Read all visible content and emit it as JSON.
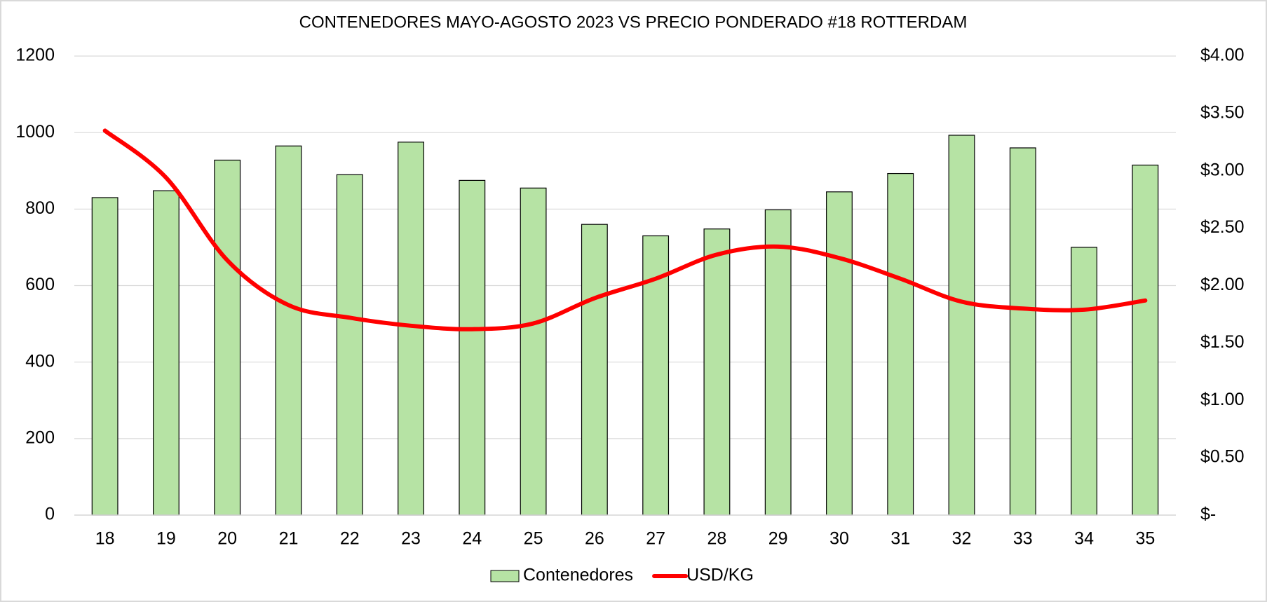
{
  "chart_data": {
    "type": "bar",
    "title": "CONTENEDORES MAYO-AGOSTO 2023 VS PRECIO PONDERADO #18 ROTTERDAM",
    "categories": [
      "18",
      "19",
      "20",
      "21",
      "22",
      "23",
      "24",
      "25",
      "26",
      "27",
      "28",
      "29",
      "30",
      "31",
      "32",
      "33",
      "34",
      "35"
    ],
    "series": [
      {
        "name": "Contenedores",
        "type": "bar",
        "color": "#b6e3a4",
        "values": [
          830,
          848,
          928,
          965,
          890,
          975,
          875,
          855,
          760,
          730,
          748,
          798,
          845,
          893,
          993,
          960,
          700,
          915
        ]
      },
      {
        "name": "USD/KG",
        "type": "line",
        "axis": "y2",
        "color": "#ff0000",
        "values": [
          3.35,
          2.94,
          2.22,
          1.83,
          1.72,
          1.65,
          1.62,
          1.67,
          1.89,
          2.06,
          2.27,
          2.34,
          2.24,
          2.06,
          1.86,
          1.8,
          1.79,
          1.87
        ]
      }
    ],
    "ylim": [
      0,
      1200
    ],
    "yticks": [
      0,
      200,
      400,
      600,
      800,
      1000,
      1200
    ],
    "y2lim": [
      0,
      4
    ],
    "y2ticks": [
      {
        "value": 0,
        "label": "$-"
      },
      {
        "value": 0.5,
        "label": "$0.50"
      },
      {
        "value": 1,
        "label": "$1.00"
      },
      {
        "value": 1.5,
        "label": "$1.50"
      },
      {
        "value": 2,
        "label": "$2.00"
      },
      {
        "value": 2.5,
        "label": "$2.50"
      },
      {
        "value": 3,
        "label": "$3.00"
      },
      {
        "value": 3.5,
        "label": "$3.50"
      },
      {
        "value": 4,
        "label": "$4.00"
      }
    ],
    "grid": true,
    "legend": "bottom"
  }
}
